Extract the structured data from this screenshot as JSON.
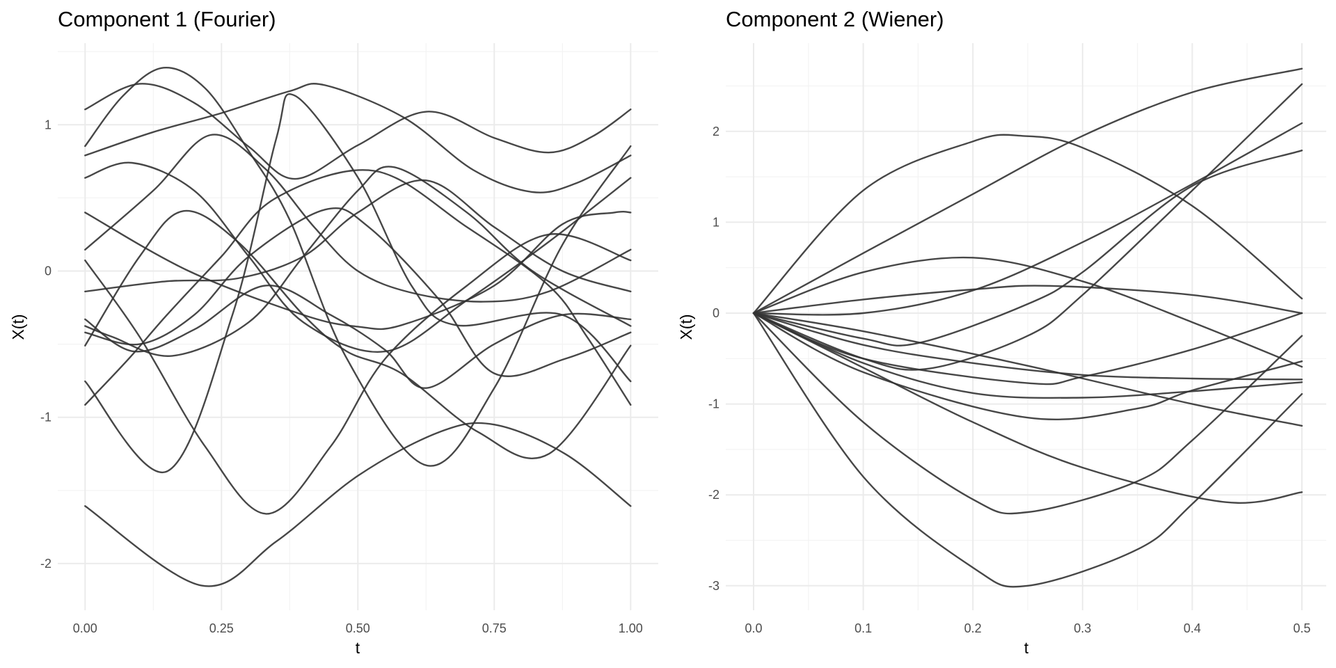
{
  "chart_data": [
    {
      "type": "line",
      "title": "Component 1 (Fourier)",
      "xlabel": "t",
      "ylabel": "X(t)",
      "xlim": [
        -0.05,
        1.05
      ],
      "ylim": [
        -2.32,
        1.56
      ],
      "xticks": [
        0,
        0.25,
        0.5,
        0.75,
        1.0
      ],
      "xtick_labels": [
        "0.00",
        "0.25",
        "0.50",
        "0.75",
        "1.00"
      ],
      "xminor": [
        0.125,
        0.375,
        0.625,
        0.875
      ],
      "yticks": [
        1,
        0,
        -1,
        -2
      ],
      "ytick_labels": [
        "1",
        "0",
        "-1",
        "-2"
      ],
      "yminor": [
        1.5,
        0.5,
        -0.5,
        -1.5
      ],
      "grid": true,
      "line_color": "#333333",
      "series": [
        {
          "points": [
            [
              0,
              1.105
            ],
            [
              0.1,
              1.28
            ],
            [
              0.2,
              1.15
            ],
            [
              0.3,
              0.85
            ],
            [
              0.385,
              0.63
            ],
            [
              0.5,
              0.86
            ],
            [
              0.627,
              1.09
            ],
            [
              0.75,
              0.91
            ],
            [
              0.85,
              0.81
            ],
            [
              0.93,
              0.92
            ],
            [
              1,
              1.105
            ]
          ]
        },
        {
          "points": [
            [
              0,
              0.854
            ],
            [
              0.07,
              1.2
            ],
            [
              0.144,
              1.39
            ],
            [
              0.22,
              1.25
            ],
            [
              0.3,
              0.82
            ],
            [
              0.375,
              0.35
            ],
            [
              0.48,
              -0.6
            ],
            [
              0.627,
              -1.33
            ],
            [
              0.75,
              -0.8
            ],
            [
              0.875,
              0.18
            ],
            [
              1,
              0.854
            ]
          ]
        },
        {
          "points": [
            [
              0,
              0.79
            ],
            [
              0.125,
              0.95
            ],
            [
              0.25,
              1.08
            ],
            [
              0.375,
              1.23
            ],
            [
              0.44,
              1.27
            ],
            [
              0.584,
              1.05
            ],
            [
              0.712,
              0.69
            ],
            [
              0.82,
              0.54
            ],
            [
              0.9,
              0.6
            ],
            [
              1,
              0.79
            ]
          ]
        },
        {
          "points": [
            [
              0,
              0.637
            ],
            [
              0.086,
              0.74
            ],
            [
              0.2,
              0.55
            ],
            [
              0.3,
              0.1
            ],
            [
              0.4,
              -0.35
            ],
            [
              0.55,
              -0.55
            ],
            [
              0.7,
              -0.2
            ],
            [
              0.85,
              0.2
            ],
            [
              1,
              0.637
            ]
          ]
        },
        {
          "points": [
            [
              0,
              0.4
            ],
            [
              0.19,
              0.0
            ],
            [
              0.4,
              -0.3
            ],
            [
              0.5,
              -0.38
            ],
            [
              0.58,
              -0.37
            ],
            [
              0.75,
              -0.1
            ],
            [
              0.875,
              0.32
            ],
            [
              0.97,
              0.4
            ],
            [
              1,
              0.4
            ]
          ]
        },
        {
          "points": [
            [
              0,
              0.146
            ],
            [
              0.125,
              0.55
            ],
            [
              0.23,
              0.93
            ],
            [
              0.33,
              0.7
            ],
            [
              0.42,
              0.3
            ],
            [
              0.5,
              0.0
            ],
            [
              0.6,
              -0.15
            ],
            [
              0.73,
              -0.21
            ],
            [
              0.85,
              -0.14
            ],
            [
              1,
              0.146
            ]
          ]
        },
        {
          "points": [
            [
              0,
              0.073
            ],
            [
              0.1,
              -0.45
            ],
            [
              0.22,
              -1.2
            ],
            [
              0.333,
              -1.66
            ],
            [
              0.45,
              -1.2
            ],
            [
              0.55,
              -0.6
            ],
            [
              0.7,
              -0.1
            ],
            [
              0.85,
              0.25
            ],
            [
              1,
              0.073
            ]
          ]
        },
        {
          "points": [
            [
              0,
              -0.14
            ],
            [
              0.15,
              -0.07
            ],
            [
              0.28,
              -0.05
            ],
            [
              0.4,
              0.1
            ],
            [
              0.5,
              0.4
            ],
            [
              0.625,
              0.62
            ],
            [
              0.75,
              0.3
            ],
            [
              0.875,
              0.0
            ],
            [
              1,
              -0.14
            ]
          ]
        },
        {
          "points": [
            [
              0,
              -0.754
            ],
            [
              0.15,
              -1.37
            ],
            [
              0.27,
              -0.3
            ],
            [
              0.35,
              0.9
            ],
            [
              0.384,
              1.2
            ],
            [
              0.5,
              0.64
            ],
            [
              0.6,
              -0.11
            ],
            [
              0.68,
              -0.37
            ],
            [
              0.875,
              -0.3
            ],
            [
              1,
              -0.754
            ]
          ]
        },
        {
          "points": [
            [
              0,
              -0.376
            ],
            [
              0.05,
              -0.45
            ],
            [
              0.16,
              -0.58
            ],
            [
              0.3,
              -0.35
            ],
            [
              0.4,
              0.1
            ],
            [
              0.5,
              0.55
            ],
            [
              0.567,
              0.71
            ],
            [
              0.7,
              0.4
            ],
            [
              0.82,
              0.0
            ],
            [
              1,
              -0.376
            ]
          ]
        },
        {
          "points": [
            [
              0,
              -0.42
            ],
            [
              0.1,
              -0.5
            ],
            [
              0.2,
              -0.3
            ],
            [
              0.3,
              0.1
            ],
            [
              0.44,
              0.42
            ],
            [
              0.52,
              0.3
            ],
            [
              0.65,
              -0.2
            ],
            [
              0.75,
              -0.7
            ],
            [
              0.88,
              -0.6
            ],
            [
              1,
              -0.42
            ]
          ]
        },
        {
          "points": [
            [
              0,
              -0.51
            ],
            [
              0.1,
              0.1
            ],
            [
              0.18,
              0.41
            ],
            [
              0.28,
              0.2
            ],
            [
              0.4,
              -0.3
            ],
            [
              0.48,
              -0.55
            ],
            [
              0.58,
              -0.7
            ],
            [
              0.72,
              -1.1
            ],
            [
              0.85,
              -1.25
            ],
            [
              1,
              -0.51
            ]
          ]
        },
        {
          "points": [
            [
              0,
              -0.33
            ],
            [
              0.09,
              -0.55
            ],
            [
              0.2,
              -0.4
            ],
            [
              0.33,
              -0.1
            ],
            [
              0.45,
              -0.3
            ],
            [
              0.55,
              -0.54
            ],
            [
              0.625,
              -0.8
            ],
            [
              0.75,
              -0.5
            ],
            [
              0.875,
              -0.3
            ],
            [
              1,
              -0.33
            ]
          ]
        },
        {
          "points": [
            [
              0,
              -0.915
            ],
            [
              0.08,
              -0.6
            ],
            [
              0.15,
              -0.3
            ],
            [
              0.25,
              0.1
            ],
            [
              0.35,
              0.5
            ],
            [
              0.53,
              0.685
            ],
            [
              0.7,
              0.3
            ],
            [
              0.85,
              -0.1
            ],
            [
              0.92,
              -0.45
            ],
            [
              1,
              -0.915
            ]
          ]
        },
        {
          "points": [
            [
              0,
              -1.607
            ],
            [
              0.213,
              -2.15
            ],
            [
              0.35,
              -1.85
            ],
            [
              0.5,
              -1.4
            ],
            [
              0.65,
              -1.1
            ],
            [
              0.75,
              -1.05
            ],
            [
              0.88,
              -1.25
            ],
            [
              1,
              -1.607
            ]
          ]
        }
      ]
    },
    {
      "type": "line",
      "title": "Component 2 (Wiener)",
      "xlabel": "t",
      "ylabel": "X(t)",
      "xlim": [
        -0.025,
        0.525
      ],
      "ylim": [
        -3.27,
        2.97
      ],
      "xticks": [
        0,
        0.1,
        0.2,
        0.3,
        0.4,
        0.5
      ],
      "xtick_labels": [
        "0.0",
        "0.1",
        "0.2",
        "0.3",
        "0.4",
        "0.5"
      ],
      "xminor": [
        0.05,
        0.15,
        0.25,
        0.35,
        0.45
      ],
      "yticks": [
        2,
        1,
        0,
        -1,
        -2,
        -3
      ],
      "ytick_labels": [
        "2",
        "1",
        "0",
        "-1",
        "-2",
        "-3"
      ],
      "yminor": [
        2.5,
        1.5,
        0.5,
        -0.5,
        -1.5,
        -2.5
      ],
      "grid": true,
      "line_color": "#333333",
      "series": [
        {
          "points": [
            [
              0,
              0
            ],
            [
              0.1,
              1.35
            ],
            [
              0.2,
              1.89
            ],
            [
              0.245,
              1.95
            ],
            [
              0.3,
              1.82
            ],
            [
              0.4,
              1.18
            ],
            [
              0.5,
              0.16
            ]
          ]
        },
        {
          "points": [
            [
              0,
              0
            ],
            [
              0.1,
              0.66
            ],
            [
              0.2,
              1.31
            ],
            [
              0.3,
              1.95
            ],
            [
              0.4,
              2.43
            ],
            [
              0.5,
              2.69
            ]
          ]
        },
        {
          "points": [
            [
              0,
              0
            ],
            [
              0.1,
              0.45
            ],
            [
              0.2,
              0.61
            ],
            [
              0.3,
              0.35
            ],
            [
              0.4,
              -0.1
            ],
            [
              0.5,
              -0.59
            ]
          ]
        },
        {
          "points": [
            [
              0,
              0
            ],
            [
              0.1,
              0.15
            ],
            [
              0.2,
              0.26
            ],
            [
              0.27,
              0.3
            ],
            [
              0.4,
              0.2
            ],
            [
              0.5,
              0.0
            ]
          ]
        },
        {
          "points": [
            [
              0,
              0
            ],
            [
              0.1,
              0.0
            ],
            [
              0.2,
              0.25
            ],
            [
              0.3,
              0.78
            ],
            [
              0.4,
              1.42
            ],
            [
              0.5,
              2.09
            ]
          ]
        },
        {
          "points": [
            [
              0,
              0
            ],
            [
              0.1,
              -0.28
            ],
            [
              0.15,
              -0.33
            ],
            [
              0.25,
              0.1
            ],
            [
              0.3,
              0.45
            ],
            [
              0.4,
              1.4
            ],
            [
              0.5,
              1.79
            ]
          ]
        },
        {
          "points": [
            [
              0,
              0
            ],
            [
              0.1,
              -0.5
            ],
            [
              0.16,
              -0.61
            ],
            [
              0.25,
              -0.25
            ],
            [
              0.3,
              0.2
            ],
            [
              0.4,
              1.35
            ],
            [
              0.5,
              2.52
            ]
          ]
        },
        {
          "points": [
            [
              0,
              0
            ],
            [
              0.1,
              -0.2
            ],
            [
              0.25,
              -0.58
            ],
            [
              0.4,
              -1.0
            ],
            [
              0.5,
              -1.24
            ]
          ]
        },
        {
          "points": [
            [
              0,
              0
            ],
            [
              0.1,
              -0.5
            ],
            [
              0.25,
              -0.77
            ],
            [
              0.3,
              -0.7
            ],
            [
              0.4,
              -0.4
            ],
            [
              0.5,
              0.0
            ]
          ]
        },
        {
          "points": [
            [
              0,
              0
            ],
            [
              0.1,
              -0.55
            ],
            [
              0.2,
              -0.88
            ],
            [
              0.3,
              -0.93
            ],
            [
              0.4,
              -0.86
            ],
            [
              0.5,
              -0.76
            ]
          ]
        },
        {
          "points": [
            [
              0,
              0
            ],
            [
              0.1,
              -0.35
            ],
            [
              0.2,
              -0.55
            ],
            [
              0.3,
              -0.68
            ],
            [
              0.4,
              -0.72
            ],
            [
              0.5,
              -0.73
            ]
          ]
        },
        {
          "points": [
            [
              0,
              0
            ],
            [
              0.1,
              -0.65
            ],
            [
              0.25,
              -1.15
            ],
            [
              0.35,
              -1.05
            ],
            [
              0.4,
              -0.85
            ],
            [
              0.5,
              -0.53
            ]
          ]
        },
        {
          "points": [
            [
              0,
              0
            ],
            [
              0.1,
              -0.6
            ],
            [
              0.2,
              -1.2
            ],
            [
              0.3,
              -1.7
            ],
            [
              0.43,
              -2.08
            ],
            [
              0.5,
              -1.97
            ]
          ]
        },
        {
          "points": [
            [
              0,
              0
            ],
            [
              0.1,
              -1.2
            ],
            [
              0.2,
              -2.05
            ],
            [
              0.25,
              -2.19
            ],
            [
              0.35,
              -1.85
            ],
            [
              0.4,
              -1.4
            ],
            [
              0.5,
              -0.25
            ]
          ]
        },
        {
          "points": [
            [
              0,
              0
            ],
            [
              0.1,
              -1.8
            ],
            [
              0.2,
              -2.8
            ],
            [
              0.25,
              -3.0
            ],
            [
              0.35,
              -2.6
            ],
            [
              0.4,
              -2.1
            ],
            [
              0.5,
              -0.89
            ]
          ]
        }
      ]
    }
  ]
}
